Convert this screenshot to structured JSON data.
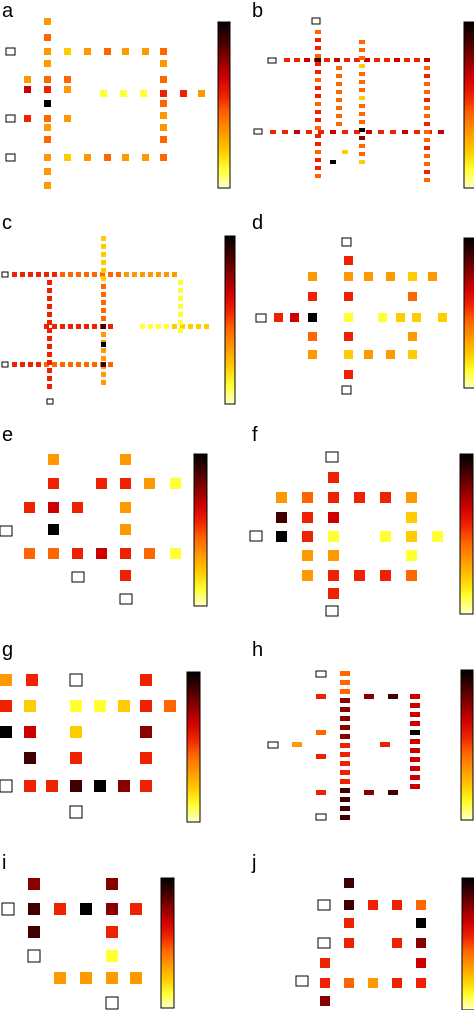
{
  "figure": {
    "description_free": true,
    "colors": {
      "scale": [
        "#ffffcc",
        "#ffff33",
        "#ffcc00",
        "#ff9900",
        "#ff6600",
        "#ee2200",
        "#cc0000",
        "#880000",
        "#400000",
        "#000000"
      ],
      "empty_outline": "#000000",
      "background": "#ffffff"
    },
    "panels": [
      {
        "label": "a"
      },
      {
        "label": "b"
      },
      {
        "label": "c"
      },
      {
        "label": "d"
      },
      {
        "label": "e"
      },
      {
        "label": "f"
      },
      {
        "label": "g"
      },
      {
        "label": "h"
      },
      {
        "label": "i"
      },
      {
        "label": "j"
      }
    ]
  }
}
